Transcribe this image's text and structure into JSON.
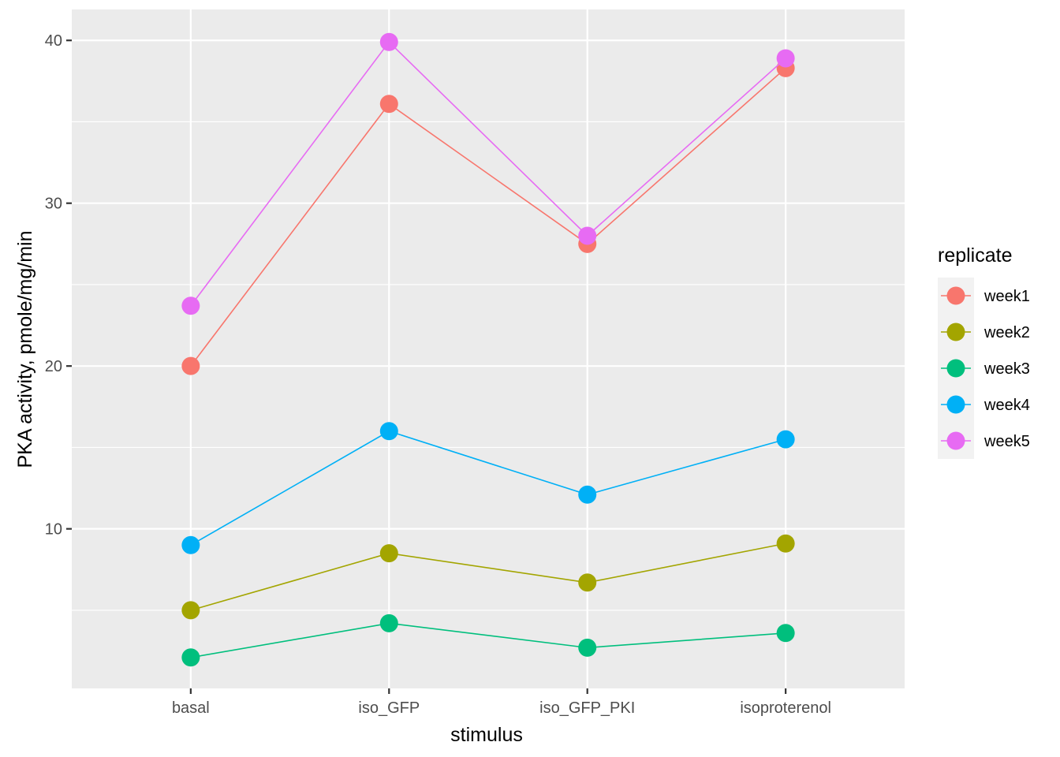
{
  "chart_data": {
    "type": "line",
    "categories": [
      "basal",
      "iso_GFP",
      "iso_GFP_PKI",
      "isoproterenol"
    ],
    "xlabel": "stimulus",
    "ylabel": "PKA activity, pmole/mg/min",
    "ylim": [
      0.2,
      41.9
    ],
    "yticks": [
      10,
      20,
      30,
      40
    ],
    "ytick_labels": [
      "10",
      "20",
      "30",
      "40"
    ],
    "grid": true,
    "panel_background": "#EBEBEB",
    "grid_color": "#FFFFFF",
    "legend": {
      "title": "replicate",
      "position": "right"
    },
    "series": [
      {
        "name": "week1",
        "color": "#F8766D",
        "values": [
          20.0,
          36.1,
          27.5,
          38.3
        ]
      },
      {
        "name": "week2",
        "color": "#A3A500",
        "values": [
          5.0,
          8.5,
          6.7,
          9.1
        ]
      },
      {
        "name": "week3",
        "color": "#00BF7D",
        "values": [
          2.1,
          4.2,
          2.7,
          3.6
        ]
      },
      {
        "name": "week4",
        "color": "#00B0F6",
        "values": [
          9.0,
          16.0,
          12.1,
          15.5
        ]
      },
      {
        "name": "week5",
        "color": "#E76BF3",
        "values": [
          23.7,
          39.9,
          28.0,
          38.9
        ]
      }
    ]
  }
}
